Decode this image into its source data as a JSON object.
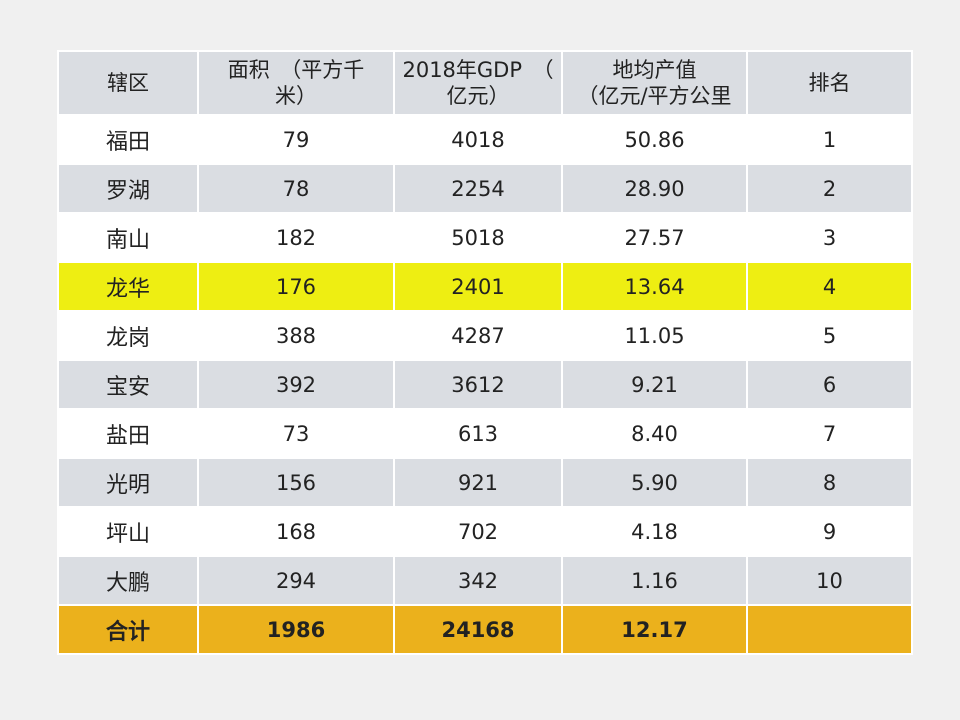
{
  "table": {
    "headers": {
      "district": "辖区",
      "area_line1": "面积　（平方千",
      "area_line2": "米）",
      "gdp_line1": "2018年GDP　（",
      "gdp_line2": "亿元）",
      "density_line1": "地均产值",
      "density_line2": "（亿元/平方公里",
      "rank": "排名"
    },
    "rows": [
      {
        "district": "福田",
        "area": "79",
        "gdp": "4018",
        "density": "50.86",
        "rank": "1"
      },
      {
        "district": "罗湖",
        "area": "78",
        "gdp": "2254",
        "density": "28.90",
        "rank": "2"
      },
      {
        "district": "南山",
        "area": "182",
        "gdp": "5018",
        "density": "27.57",
        "rank": "3"
      },
      {
        "district": "龙华",
        "area": "176",
        "gdp": "2401",
        "density": "13.64",
        "rank": "4"
      },
      {
        "district": "龙岗",
        "area": "388",
        "gdp": "4287",
        "density": "11.05",
        "rank": "5"
      },
      {
        "district": "宝安",
        "area": "392",
        "gdp": "3612",
        "density": "9.21",
        "rank": "6"
      },
      {
        "district": "盐田",
        "area": "73",
        "gdp": "613",
        "density": "8.40",
        "rank": "7"
      },
      {
        "district": "光明",
        "area": "156",
        "gdp": "921",
        "density": "5.90",
        "rank": "8"
      },
      {
        "district": "坪山",
        "area": "168",
        "gdp": "702",
        "density": "4.18",
        "rank": "9"
      },
      {
        "district": "大鹏",
        "area": "294",
        "gdp": "342",
        "density": "1.16",
        "rank": "10"
      }
    ],
    "total": {
      "district": "合计",
      "area": "1986",
      "gdp": "24168",
      "density": "12.17",
      "rank": ""
    },
    "highlight_district": "龙华",
    "colors": {
      "header_bg": "#dadde2",
      "stripe_bg": "#dadde2",
      "row_bg": "#ffffff",
      "highlight_bg": "#eeee12",
      "total_bg": "#ebb11c",
      "page_bg": "#f0f0f0"
    }
  }
}
